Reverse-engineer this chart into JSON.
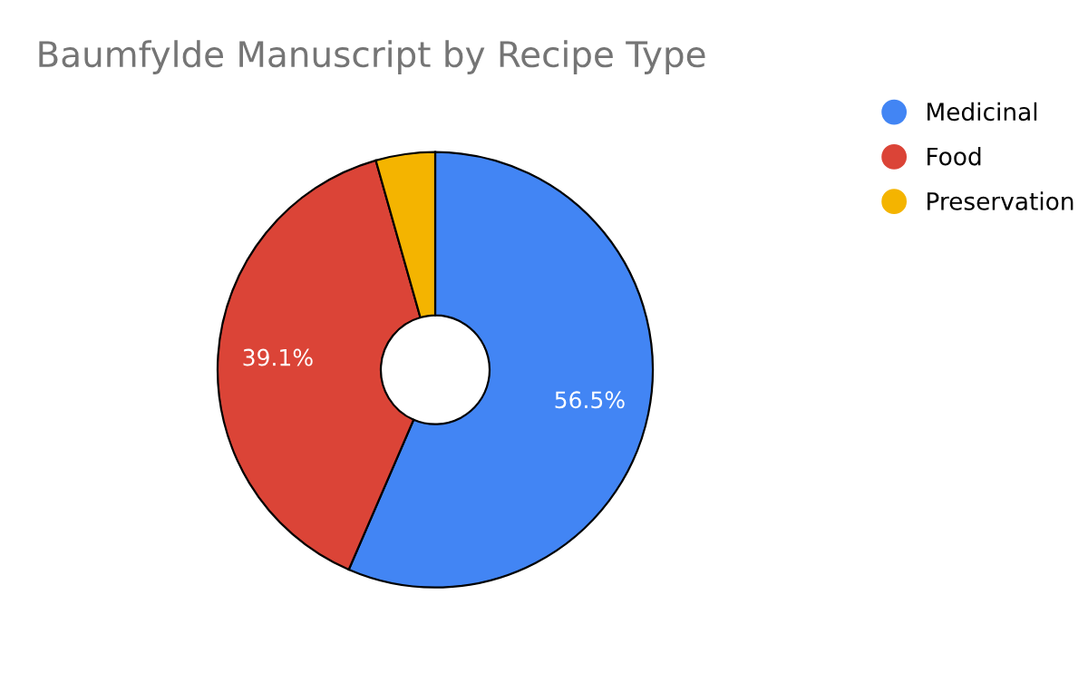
{
  "chart_data": {
    "type": "donut",
    "title": "Baumfylde Manuscript by Recipe Type",
    "categories": [
      "Medicinal",
      "Food",
      "Preservation"
    ],
    "values": [
      56.5,
      39.1,
      4.4
    ],
    "colors": [
      "#4285f4",
      "#db4437",
      "#f4b400"
    ],
    "value_labels": [
      "56.5%",
      "39.1%",
      null
    ],
    "legend": "top right"
  }
}
